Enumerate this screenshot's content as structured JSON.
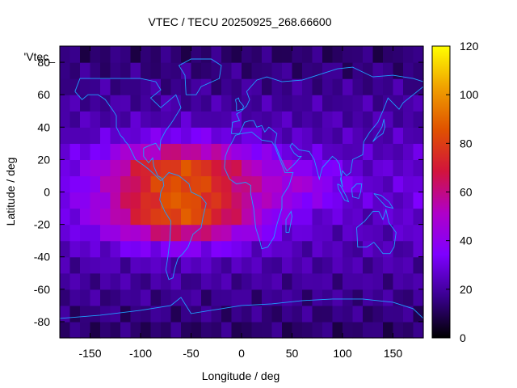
{
  "chart_data": {
    "type": "heatmap",
    "title": "VTEC / TECU 20250925_268.66600",
    "xlabel": "Longitude / deg",
    "ylabel": "Latitude / deg",
    "series_label": "'Vtec_",
    "xlim": [
      -180,
      180
    ],
    "ylim": [
      -90,
      90
    ],
    "x_ticks": [
      -150,
      -100,
      -50,
      0,
      50,
      100,
      150
    ],
    "y_ticks": [
      -80,
      -60,
      -40,
      -20,
      0,
      20,
      40,
      60,
      80
    ],
    "colorbar": {
      "range": [
        0,
        120
      ],
      "ticks": [
        0,
        20,
        40,
        60,
        80,
        100,
        120
      ],
      "palette": [
        "#000000",
        "#3a0090",
        "#7e00ff",
        "#b000c8",
        "#d2143c",
        "#e05200",
        "#f0a000",
        "#ffff00"
      ]
    },
    "grid": {
      "lon_step": 10,
      "lat_step": 10
    },
    "features": {
      "background_vtec": 25,
      "polar_vtec": 12,
      "crest_peak_vtec": 95,
      "crest_peak_longitude": -60,
      "crest_latitude_north": 15,
      "crest_latitude_south": -15,
      "asia_band_vtec": 40
    }
  },
  "colors": {
    "coastline": "#1ea0ff",
    "frame": "#000000"
  }
}
